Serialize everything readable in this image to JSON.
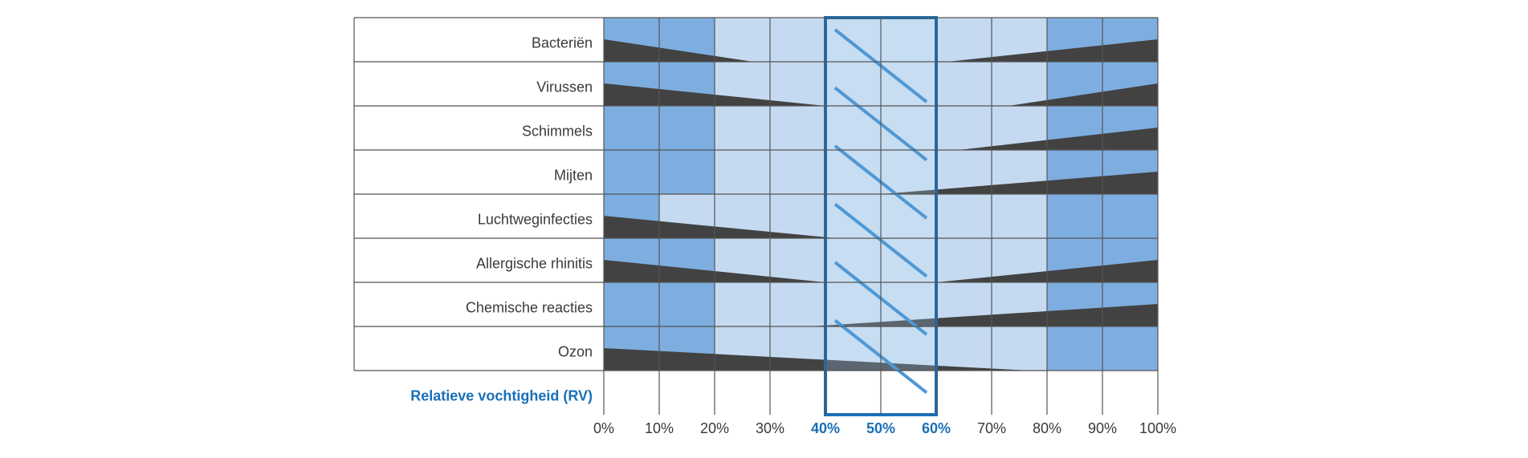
{
  "chart_data": {
    "type": "table",
    "xlabel": "Relatieve vochtigheid (RV)",
    "x_ticks": [
      "0%",
      "10%",
      "20%",
      "30%",
      "40%",
      "50%",
      "60%",
      "70%",
      "80%",
      "90%",
      "100%"
    ],
    "optimal_range": [
      40,
      60
    ],
    "rows": [
      {
        "label": "Bacteriën",
        "left_wedge": {
          "to": 27
        },
        "right_wedge": {
          "from": 62
        },
        "dark_cells": [
          0,
          1,
          8,
          9
        ]
      },
      {
        "label": "Virussen",
        "left_wedge": {
          "to": 40
        },
        "right_wedge": {
          "from": 73
        },
        "dark_cells": [
          0,
          1,
          8,
          9
        ]
      },
      {
        "label": "Schimmels",
        "left_wedge": null,
        "right_wedge": {
          "from": 64
        },
        "dark_cells": [
          0,
          1,
          8,
          9
        ]
      },
      {
        "label": "Mijten",
        "left_wedge": null,
        "right_wedge": {
          "from": 50
        },
        "dark_cells": [
          0,
          1,
          8,
          9
        ]
      },
      {
        "label": "Luchtweginfecties",
        "left_wedge": {
          "to": 42
        },
        "right_wedge": null,
        "dark_cells": [
          0,
          8,
          9
        ]
      },
      {
        "label": "Allergische rhinitis",
        "left_wedge": {
          "to": 40
        },
        "right_wedge": {
          "from": 60
        },
        "dark_cells": [
          0,
          1,
          8,
          9
        ]
      },
      {
        "label": "Chemische reacties",
        "left_wedge": null,
        "right_wedge": {
          "from": 37
        },
        "dark_cells": [
          0,
          1,
          8,
          9
        ]
      },
      {
        "label": "Ozon",
        "left_wedge": {
          "to": 77
        },
        "right_wedge": null,
        "dark_cells": [
          0,
          1,
          8,
          9
        ]
      }
    ]
  },
  "colors": {
    "cell_dark": "#7eaee0",
    "cell_light": "#c5daf0",
    "cell_optimal": "#d6e6f6",
    "wedge": "#424242",
    "grid": "#555555",
    "highlight": "#1a6fb8",
    "hatch": "#4f98d4"
  }
}
